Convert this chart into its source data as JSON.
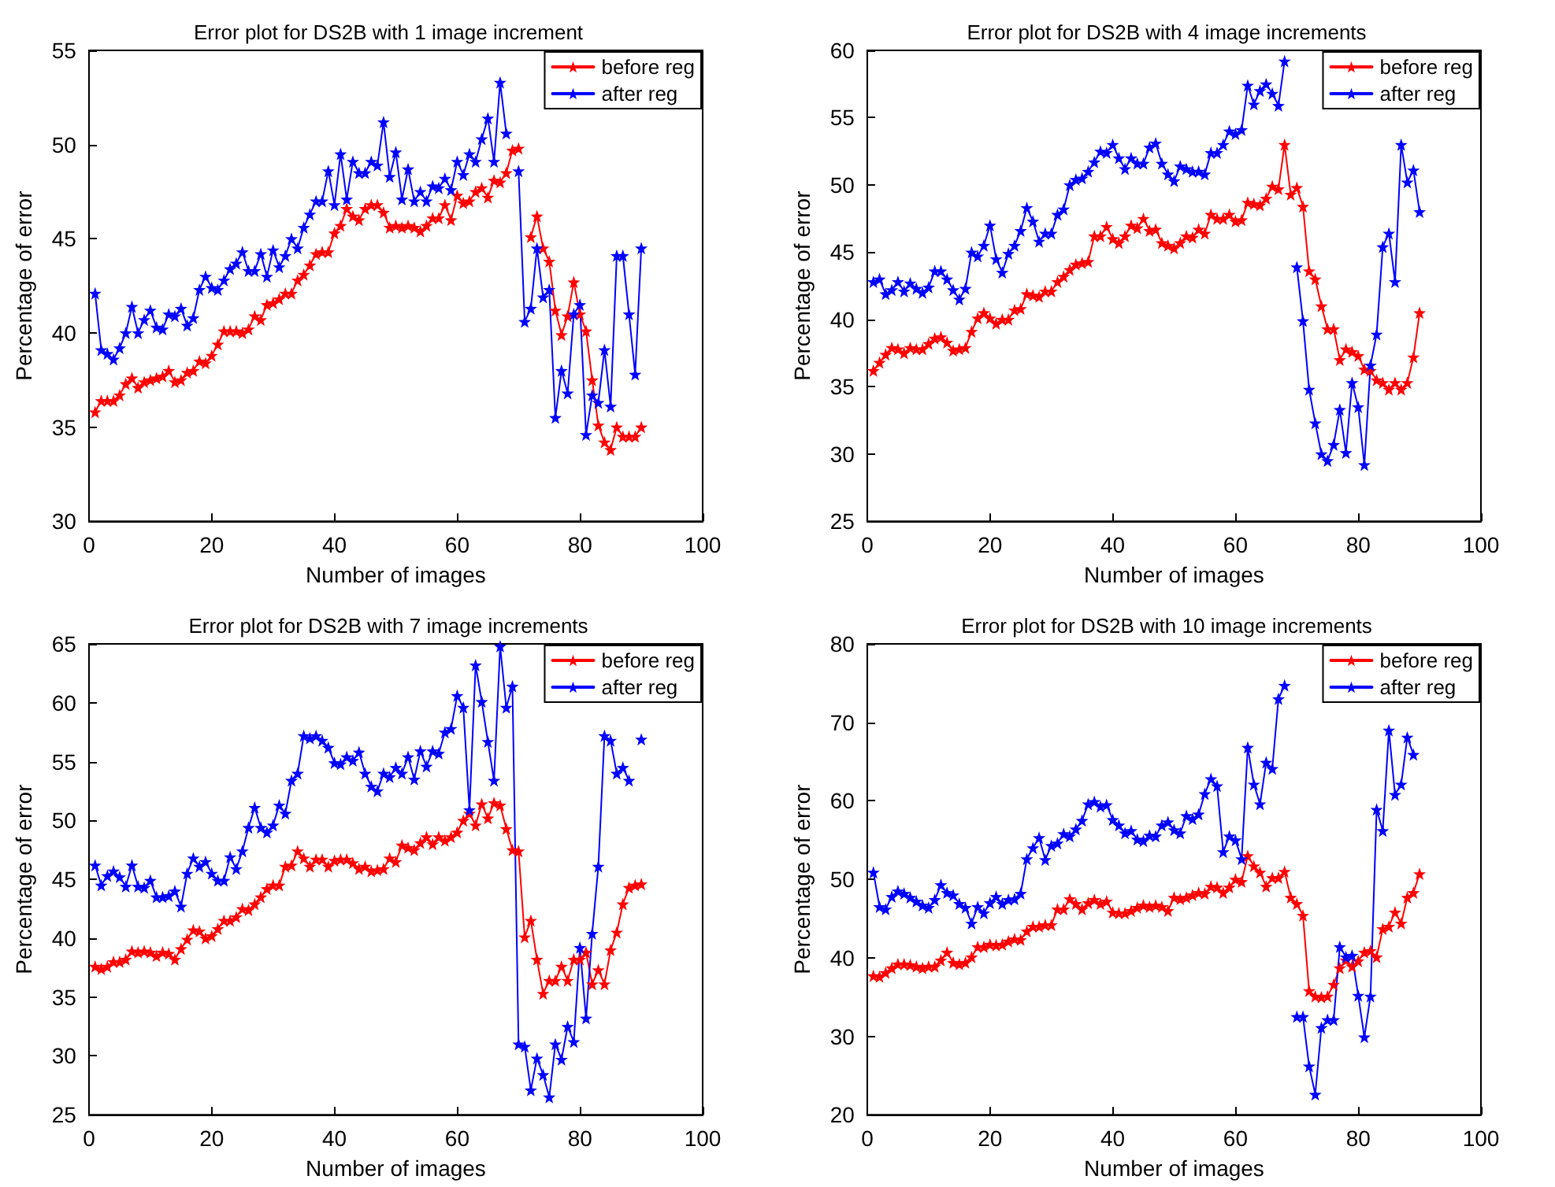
{
  "chart_data": [
    {
      "type": "line",
      "title": "Error plot for DS2B with 1 image increment",
      "xlabel": "Number of images",
      "ylabel": "Percentage of error",
      "x": [
        1,
        2,
        3,
        4,
        5,
        6,
        7,
        8,
        9,
        10,
        11,
        12,
        13,
        14,
        15,
        16,
        17,
        18,
        19,
        20,
        21,
        22,
        23,
        24,
        25,
        26,
        27,
        28,
        29,
        30,
        31,
        32,
        33,
        34,
        35,
        36,
        37,
        38,
        39,
        40,
        41,
        42,
        43,
        44,
        45,
        46,
        47,
        48,
        49,
        50,
        51,
        52,
        53,
        54,
        55,
        56,
        57,
        58,
        59,
        60,
        61,
        62,
        63,
        64,
        65,
        66,
        67,
        68,
        69,
        70,
        71,
        72,
        73,
        74,
        75,
        76,
        77,
        78,
        79,
        80,
        81,
        82,
        83,
        84,
        85,
        86,
        87,
        88,
        89,
        90
      ],
      "xlim": [
        0,
        100
      ],
      "xticks": [
        0,
        20,
        40,
        60,
        80,
        100
      ],
      "ylim": [
        30,
        55
      ],
      "yticks": [
        30,
        35,
        40,
        45,
        50,
        55
      ],
      "legend": "top right",
      "marker": "star",
      "line_style": "solid",
      "grid": false,
      "series": [
        {
          "name": "before reg",
          "color": "#ff0000",
          "values": [
            35.8,
            36.4,
            36.4,
            36.4,
            36.7,
            37.3,
            37.6,
            37.1,
            37.4,
            37.5,
            37.6,
            37.7,
            38.0,
            37.4,
            37.5,
            37.9,
            38.0,
            38.5,
            38.4,
            38.8,
            39.4,
            40.1,
            40.1,
            40.1,
            40.0,
            40.2,
            40.9,
            40.7,
            41.5,
            41.6,
            41.8,
            42.1,
            42.1,
            42.8,
            43.1,
            43.6,
            44.2,
            44.3,
            44.3,
            45.3,
            45.7,
            46.6,
            46.2,
            46.0,
            46.6,
            46.8,
            46.8,
            46.4,
            45.6,
            45.7,
            45.6,
            45.7,
            45.6,
            45.4,
            45.7,
            46.1,
            46.1,
            46.8,
            46.0,
            47.3,
            46.9,
            47.0,
            47.5,
            47.7,
            47.2,
            48.1,
            48.0,
            48.5,
            49.7,
            49.8,
            null,
            45.1,
            46.2,
            44.5,
            43.8,
            41.2,
            39.9,
            40.9,
            42.7,
            41.0,
            40.1,
            37.5,
            35.1,
            34.2,
            33.8,
            35.0,
            34.5,
            34.5,
            34.5,
            35.0
          ]
        },
        {
          "name": "after reg",
          "color": "#0000ff",
          "values": [
            42.1,
            39.1,
            38.9,
            38.6,
            39.2,
            40.0,
            41.4,
            40.0,
            40.7,
            41.2,
            40.3,
            40.2,
            41.0,
            40.9,
            41.3,
            40.4,
            40.8,
            42.3,
            43.0,
            42.4,
            42.3,
            42.8,
            43.4,
            43.7,
            44.3,
            43.3,
            43.3,
            44.2,
            43.0,
            44.4,
            43.5,
            44.1,
            45.0,
            44.5,
            45.6,
            46.3,
            47.0,
            47.0,
            48.6,
            46.8,
            49.5,
            47.1,
            49.1,
            48.5,
            48.5,
            49.1,
            48.9,
            51.2,
            48.3,
            49.6,
            47.1,
            48.7,
            47.0,
            47.5,
            47.0,
            47.8,
            47.7,
            48.2,
            47.6,
            49.1,
            48.4,
            49.5,
            49.1,
            50.3,
            51.4,
            49.1,
            53.3,
            50.6,
            null,
            48.6,
            40.6,
            41.3,
            44.5,
            41.9,
            42.3,
            35.5,
            38.0,
            36.8,
            41.0,
            41.5,
            34.6,
            36.7,
            36.3,
            39.1,
            36.1,
            44.1,
            44.1,
            41.0,
            37.8,
            44.5
          ]
        }
      ]
    },
    {
      "type": "line",
      "title": "Error plot for DS2B with 4 image increments",
      "xlabel": "Number of images",
      "ylabel": "Percentage of error",
      "x": [
        1,
        2,
        3,
        4,
        5,
        6,
        7,
        8,
        9,
        10,
        11,
        12,
        13,
        14,
        15,
        16,
        17,
        18,
        19,
        20,
        21,
        22,
        23,
        24,
        25,
        26,
        27,
        28,
        29,
        30,
        31,
        32,
        33,
        34,
        35,
        36,
        37,
        38,
        39,
        40,
        41,
        42,
        43,
        44,
        45,
        46,
        47,
        48,
        49,
        50,
        51,
        52,
        53,
        54,
        55,
        56,
        57,
        58,
        59,
        60,
        61,
        62,
        63,
        64,
        65,
        66,
        67,
        68,
        69,
        70,
        71,
        72,
        73,
        74,
        75,
        76,
        77,
        78,
        79,
        80,
        81,
        82,
        83,
        84,
        85,
        86,
        87,
        88,
        89,
        90
      ],
      "xlim": [
        0,
        100
      ],
      "xticks": [
        0,
        20,
        40,
        60,
        80,
        100
      ],
      "ylim": [
        25,
        60
      ],
      "yticks": [
        25,
        30,
        35,
        40,
        45,
        50,
        55,
        60
      ],
      "legend": "top right",
      "marker": "star",
      "line_style": "solid",
      "grid": false,
      "series": [
        {
          "name": "before reg",
          "color": "#ff0000",
          "values": [
            36.2,
            36.8,
            37.4,
            37.9,
            37.8,
            37.5,
            37.9,
            37.8,
            37.8,
            38.2,
            38.6,
            38.7,
            38.3,
            37.7,
            37.8,
            37.9,
            39.1,
            40.1,
            40.5,
            40.1,
            39.7,
            40.0,
            40.0,
            40.7,
            40.8,
            41.9,
            41.8,
            41.7,
            42.1,
            42.1,
            42.8,
            43.2,
            43.7,
            44.1,
            44.2,
            44.3,
            46.2,
            46.2,
            46.9,
            46.0,
            45.7,
            46.2,
            47.0,
            46.8,
            47.5,
            46.6,
            46.7,
            45.7,
            45.5,
            45.3,
            45.7,
            46.2,
            46.1,
            46.7,
            46.4,
            47.8,
            47.5,
            47.5,
            47.8,
            47.3,
            47.4,
            48.7,
            48.6,
            48.5,
            49.0,
            49.9,
            49.7,
            53.0,
            49.3,
            49.8,
            48.4,
            43.6,
            43.0,
            41.0,
            39.3,
            39.3,
            37.0,
            37.8,
            37.6,
            37.3,
            36.3,
            36.2,
            35.5,
            35.3,
            34.8,
            35.3,
            34.8,
            35.3,
            37.2,
            40.5
          ]
        },
        {
          "name": "after reg",
          "color": "#0000ff",
          "values": [
            42.8,
            43.0,
            41.9,
            42.2,
            42.8,
            42.1,
            42.7,
            42.3,
            42.0,
            42.4,
            43.6,
            43.6,
            43.0,
            42.2,
            41.5,
            42.3,
            45.0,
            44.7,
            45.5,
            47.0,
            44.5,
            43.5,
            44.9,
            45.5,
            46.6,
            48.3,
            47.3,
            45.8,
            46.4,
            46.4,
            47.8,
            48.2,
            50.0,
            50.4,
            50.5,
            51.0,
            51.7,
            52.5,
            52.4,
            53.0,
            52.0,
            51.2,
            52.0,
            51.6,
            51.6,
            52.8,
            53.1,
            51.6,
            50.8,
            50.3,
            51.4,
            51.2,
            51.0,
            51.0,
            50.8,
            52.4,
            52.4,
            53.0,
            54.0,
            53.8,
            54.1,
            57.4,
            56.0,
            57.0,
            57.5,
            56.8,
            55.9,
            59.2,
            null,
            43.9,
            39.9,
            34.8,
            32.3,
            30.0,
            29.5,
            30.7,
            33.3,
            30.1,
            35.3,
            33.5,
            29.2,
            36.6,
            38.9,
            45.4,
            46.4,
            42.8,
            53.0,
            50.2,
            51.1,
            48.0
          ]
        }
      ]
    },
    {
      "type": "line",
      "title": "Error plot for DS2B with 7 image increments",
      "xlabel": "Number of images",
      "ylabel": "Percentage of error",
      "x": [
        1,
        2,
        3,
        4,
        5,
        6,
        7,
        8,
        9,
        10,
        11,
        12,
        13,
        14,
        15,
        16,
        17,
        18,
        19,
        20,
        21,
        22,
        23,
        24,
        25,
        26,
        27,
        28,
        29,
        30,
        31,
        32,
        33,
        34,
        35,
        36,
        37,
        38,
        39,
        40,
        41,
        42,
        43,
        44,
        45,
        46,
        47,
        48,
        49,
        50,
        51,
        52,
        53,
        54,
        55,
        56,
        57,
        58,
        59,
        60,
        61,
        62,
        63,
        64,
        65,
        66,
        67,
        68,
        69,
        70,
        71,
        72,
        73,
        74,
        75,
        76,
        77,
        78,
        79,
        80,
        81,
        82,
        83,
        84,
        85,
        86,
        87,
        88,
        89,
        90
      ],
      "xlim": [
        0,
        100
      ],
      "xticks": [
        0,
        20,
        40,
        60,
        80,
        100
      ],
      "ylim": [
        25,
        65
      ],
      "yticks": [
        25,
        30,
        35,
        40,
        45,
        50,
        55,
        60,
        65
      ],
      "legend": "top right",
      "marker": "star",
      "line_style": "solid",
      "grid": false,
      "series": [
        {
          "name": "before reg",
          "color": "#ff0000",
          "values": [
            37.6,
            37.4,
            37.6,
            38.0,
            38.0,
            38.2,
            38.9,
            38.8,
            38.9,
            38.8,
            38.5,
            38.8,
            38.7,
            38.2,
            39.1,
            39.9,
            40.7,
            40.6,
            40.0,
            40.2,
            40.8,
            41.5,
            41.5,
            41.8,
            42.5,
            42.4,
            42.9,
            43.5,
            44.2,
            44.5,
            44.5,
            46.1,
            46.2,
            47.4,
            46.8,
            46.1,
            46.7,
            46.7,
            46.1,
            46.6,
            46.7,
            46.7,
            46.4,
            45.9,
            46.1,
            45.7,
            45.8,
            45.9,
            46.8,
            46.5,
            47.9,
            47.7,
            47.5,
            48.1,
            48.6,
            48.0,
            48.6,
            48.3,
            48.6,
            49.0,
            50.0,
            50.6,
            49.6,
            51.4,
            50.2,
            51.5,
            51.3,
            49.3,
            47.5,
            47.4,
            40.1,
            41.5,
            38.2,
            35.3,
            36.4,
            36.4,
            37.6,
            36.4,
            38.2,
            38.2,
            38.8,
            36.1,
            37.3,
            36.1,
            39.0,
            40.5,
            42.9,
            44.3,
            44.5,
            44.6
          ]
        },
        {
          "name": "after reg",
          "color": "#0000ff",
          "values": [
            46.2,
            44.5,
            45.3,
            45.7,
            45.2,
            44.4,
            46.2,
            44.4,
            44.3,
            44.9,
            43.5,
            43.5,
            43.6,
            44.0,
            42.7,
            45.5,
            46.8,
            46.1,
            46.5,
            45.5,
            44.9,
            44.9,
            46.9,
            45.9,
            47.4,
            49.4,
            51.1,
            49.4,
            49.0,
            49.6,
            51.3,
            50.6,
            53.4,
            54.0,
            57.2,
            57.0,
            57.2,
            56.8,
            56.2,
            54.9,
            54.8,
            55.4,
            55.1,
            55.8,
            54.0,
            52.9,
            52.5,
            54.0,
            53.7,
            54.5,
            54.0,
            55.4,
            53.5,
            55.9,
            54.6,
            55.9,
            55.7,
            57.5,
            57.8,
            60.6,
            59.6,
            50.9,
            63.2,
            60.1,
            56.7,
            53.4,
            64.8,
            59.6,
            61.4,
            31.0,
            30.8,
            27.1,
            29.8,
            28.4,
            26.5,
            31.0,
            29.7,
            32.5,
            31.2,
            39.2,
            33.2,
            40.4,
            46.1,
            57.2,
            56.8,
            54.0,
            54.5,
            53.4,
            null,
            56.9
          ]
        }
      ]
    },
    {
      "type": "line",
      "title": "Error plot for DS2B with 10 image increments",
      "xlabel": "Number of images",
      "ylabel": "Percentage of error",
      "x": [
        1,
        2,
        3,
        4,
        5,
        6,
        7,
        8,
        9,
        10,
        11,
        12,
        13,
        14,
        15,
        16,
        17,
        18,
        19,
        20,
        21,
        22,
        23,
        24,
        25,
        26,
        27,
        28,
        29,
        30,
        31,
        32,
        33,
        34,
        35,
        36,
        37,
        38,
        39,
        40,
        41,
        42,
        43,
        44,
        45,
        46,
        47,
        48,
        49,
        50,
        51,
        52,
        53,
        54,
        55,
        56,
        57,
        58,
        59,
        60,
        61,
        62,
        63,
        64,
        65,
        66,
        67,
        68,
        69,
        70,
        71,
        72,
        73,
        74,
        75,
        76,
        77,
        78,
        79,
        80,
        81,
        82,
        83,
        84,
        85,
        86,
        87,
        88,
        89,
        90
      ],
      "xlim": [
        0,
        100
      ],
      "xticks": [
        0,
        20,
        40,
        60,
        80,
        100
      ],
      "ylim": [
        20,
        80
      ],
      "yticks": [
        20,
        30,
        40,
        50,
        60,
        70,
        80
      ],
      "legend": "top right",
      "marker": "star",
      "line_style": "solid",
      "grid": false,
      "series": [
        {
          "name": "before reg",
          "color": "#ff0000",
          "values": [
            37.7,
            37.6,
            38.1,
            38.7,
            39.2,
            39.2,
            39.1,
            38.9,
            38.7,
            38.9,
            38.9,
            39.7,
            40.7,
            39.4,
            39.2,
            39.4,
            40.1,
            41.4,
            41.4,
            41.7,
            41.6,
            41.7,
            42.1,
            42.4,
            42.3,
            43.4,
            44.0,
            44.0,
            44.2,
            44.2,
            46.2,
            46.2,
            47.5,
            46.9,
            46.2,
            47.0,
            47.4,
            46.9,
            47.2,
            45.8,
            45.7,
            45.7,
            46.0,
            46.4,
            46.7,
            46.5,
            46.7,
            46.5,
            46.0,
            47.7,
            47.5,
            47.7,
            48.0,
            48.3,
            48.2,
            49.1,
            49.0,
            48.3,
            49.0,
            50.0,
            49.7,
            53.0,
            51.7,
            50.9,
            49.1,
            50.2,
            50.2,
            51.0,
            47.7,
            46.9,
            45.4,
            35.8,
            35.1,
            35.0,
            35.1,
            36.6,
            38.7,
            39.7,
            38.9,
            39.6,
            40.7,
            40.9,
            40.1,
            43.7,
            44.0,
            45.8,
            44.4,
            47.7,
            48.3,
            50.7
          ]
        },
        {
          "name": "after reg",
          "color": "#0000ff",
          "values": [
            50.9,
            46.5,
            46.2,
            47.8,
            48.5,
            48.2,
            47.7,
            47.2,
            46.7,
            46.4,
            47.4,
            49.3,
            48.3,
            48.0,
            46.9,
            46.4,
            44.4,
            46.5,
            45.7,
            47.0,
            47.8,
            46.9,
            47.4,
            47.5,
            48.2,
            52.6,
            54.0,
            55.3,
            52.5,
            54.3,
            54.6,
            55.8,
            55.5,
            56.4,
            57.5,
            59.6,
            59.9,
            59.3,
            59.5,
            57.6,
            56.9,
            55.9,
            56.2,
            55.1,
            54.9,
            55.6,
            55.5,
            56.9,
            57.3,
            56.3,
            55.9,
            58.1,
            57.7,
            58.3,
            60.9,
            62.8,
            61.9,
            53.5,
            55.5,
            55.0,
            52.6,
            66.8,
            62.1,
            59.6,
            64.9,
            64.1,
            73.0,
            74.7,
            null,
            32.5,
            32.5,
            26.2,
            22.6,
            31.1,
            32.1,
            32.1,
            41.4,
            40.1,
            40.3,
            35.2,
            29.9,
            35.1,
            58.9,
            56.2,
            69.0,
            60.8,
            62.1,
            68.1,
            65.9,
            null
          ]
        }
      ]
    }
  ]
}
